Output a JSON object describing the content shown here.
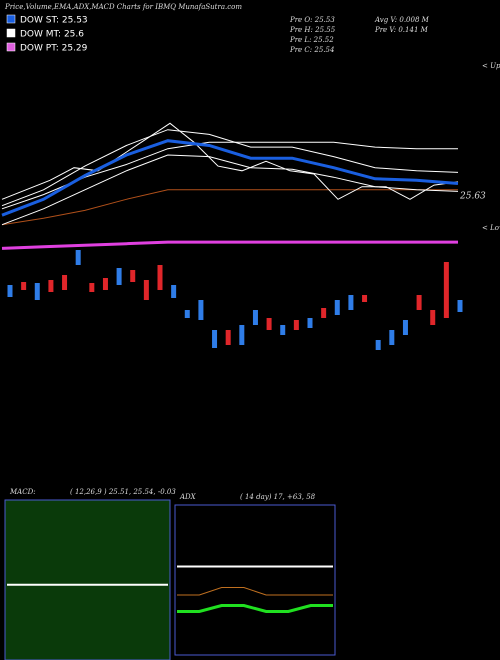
{
  "header": {
    "title": "Price,Volume,EMA,ADX,MACD Charts for IBMQ MunafaSutra.com",
    "stats": [
      "Pre O: 25.53",
      "Pre H: 25.55",
      "Pre L: 25.52",
      "Pre C: 25.54",
      "Avg V: 0.008 M",
      "Pre V: 0.141 M"
    ]
  },
  "chart_data": [
    {
      "type": "line",
      "legend": [
        {
          "name": "DOW ST: 25.53",
          "color": "#1a5fe0"
        },
        {
          "name": "DOW MT: 25.6",
          "color": "#ffffff"
        },
        {
          "name": "DOW PT: 25.29",
          "color": "#e060e0"
        }
      ],
      "annotations": [
        "< Upper",
        "< Lower",
        "25.63"
      ],
      "ylim": [
        25.2,
        26.4
      ],
      "series": [
        {
          "color": "#b0501a",
          "values": [
            25.36,
            25.4,
            25.45,
            25.52,
            25.58,
            25.58,
            25.58,
            25.58,
            25.58,
            25.58,
            25.58,
            25.58
          ]
        },
        {
          "color": "#ffffff",
          "values": [
            25.36,
            25.46,
            25.58,
            25.7,
            25.8,
            25.79,
            25.72,
            25.71,
            25.66,
            25.6,
            25.58,
            25.57
          ]
        },
        {
          "color": "#ffffff",
          "values": [
            25.48,
            25.58,
            25.73,
            25.86,
            25.96,
            25.93,
            25.85,
            25.85,
            25.79,
            25.72,
            25.7,
            25.69
          ]
        },
        {
          "color": "#ffffff",
          "values": [
            25.46,
            25.55,
            25.66,
            25.74,
            25.84,
            25.88,
            25.88,
            25.88,
            25.88,
            25.85,
            25.84,
            25.84
          ]
        },
        {
          "color": "#ffffff",
          "values": [
            25.52,
            25.58,
            25.64,
            25.72,
            25.7,
            25.8,
            25.9,
            26.0,
            25.88,
            25.73,
            25.7,
            25.76,
            25.7,
            25.68,
            25.52,
            25.6,
            25.6,
            25.52,
            25.61,
            25.63
          ]
        },
        {
          "color": "#1a5fe0",
          "width": 3,
          "values": [
            25.42,
            25.52,
            25.67,
            25.8,
            25.89,
            25.86,
            25.78,
            25.78,
            25.72,
            25.65,
            25.64,
            25.62
          ]
        },
        {
          "color": "#e040e0",
          "width": 3,
          "values": [
            25.21,
            25.22,
            25.23,
            25.24,
            25.25,
            25.25,
            25.25,
            25.25,
            25.25,
            25.25,
            25.25,
            25.25
          ]
        }
      ]
    },
    {
      "type": "candlestick",
      "ylim": [
        25.24,
        25.5
      ],
      "colors": {
        "up": "#2f7de8",
        "down": "#e0262a"
      },
      "open": [
        25.406,
        25.436,
        25.4,
        25.44,
        25.45,
        25.47,
        25.434,
        25.444,
        25.43,
        25.46,
        25.44,
        25.47,
        25.404,
        25.364,
        25.36,
        25.304,
        25.34,
        25.31,
        25.35,
        25.364,
        25.33,
        25.36,
        25.344,
        25.384,
        25.37,
        25.38,
        25.41,
        25.3,
        25.31,
        25.33,
        25.41,
        25.38,
        25.476,
        25.376
      ],
      "close": [
        25.43,
        25.42,
        25.434,
        25.416,
        25.42,
        25.5,
        25.416,
        25.42,
        25.464,
        25.436,
        25.4,
        25.42,
        25.43,
        25.38,
        25.4,
        25.34,
        25.31,
        25.35,
        25.38,
        25.34,
        25.35,
        25.34,
        25.364,
        25.364,
        25.4,
        25.41,
        25.396,
        25.32,
        25.34,
        25.36,
        25.38,
        25.35,
        25.364,
        25.4
      ]
    },
    {
      "type": "line",
      "title": "MACD:",
      "subtitle": "( 12,26,9 ) 25.51, 25.54, -0.03",
      "background": "#0a3a0a",
      "ylim": [
        -0.5,
        0.5
      ],
      "series": [
        {
          "color": "#ffffff",
          "width": 2,
          "values": [
            -0.03,
            -0.03,
            -0.03,
            -0.03
          ]
        }
      ]
    },
    {
      "type": "line",
      "title": "ADX",
      "subtitle": "( 14 day) 17, +63, 58",
      "background": "#000000",
      "ylim": [
        0,
        100
      ],
      "series": [
        {
          "color": "#ffffff",
          "width": 2,
          "values": [
            59,
            59,
            59,
            59,
            59,
            59,
            59,
            59
          ]
        },
        {
          "color": "#c07020",
          "width": 1,
          "values": [
            40,
            40,
            45,
            45,
            40,
            40,
            40,
            40
          ]
        },
        {
          "color": "#20e020",
          "width": 3,
          "values": [
            29,
            29,
            33,
            33,
            29,
            29,
            33,
            33
          ]
        }
      ]
    }
  ]
}
